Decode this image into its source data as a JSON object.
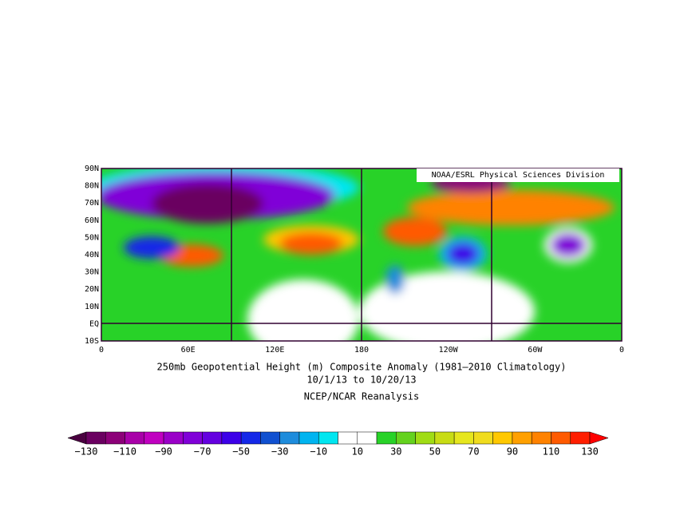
{
  "map": {
    "lat_labels": [
      "90N",
      "80N",
      "70N",
      "60N",
      "50N",
      "40N",
      "30N",
      "20N",
      "10N",
      "EQ",
      "10S"
    ],
    "lon_labels": [
      "0",
      "60E",
      "120E",
      "180",
      "120W",
      "60W",
      "0"
    ],
    "credit": "NOAA/ESRL Physical Sciences Division",
    "title": "250mb Geopotential Height (m) Composite Anomaly (1981–2010 Climatology)",
    "dates": "10/1/13  to 10/20/13",
    "source": "NCEP/NCAR Reanalysis"
  },
  "colorbar": {
    "labels": [
      "−130",
      "−110",
      "−90",
      "−70",
      "−50",
      "−30",
      "−10",
      "10",
      "30",
      "50",
      "70",
      "90",
      "110",
      "130"
    ],
    "colors": [
      "#4a0040",
      "#6a0060",
      "#8c0078",
      "#a800a8",
      "#c000c0",
      "#9a00c8",
      "#8000d8",
      "#6400e0",
      "#3c00e8",
      "#1428e8",
      "#1050d0",
      "#1e8cdc",
      "#00b4f0",
      "#00e6f0",
      "#ffffff",
      "#ffffff",
      "#28d228",
      "#64d21e",
      "#a0dc14",
      "#c8dc14",
      "#e6e61e",
      "#f0dc1e",
      "#ffc800",
      "#ffa000",
      "#ff8200",
      "#ff5a00",
      "#ff1e00",
      "#ff0000"
    ]
  }
}
